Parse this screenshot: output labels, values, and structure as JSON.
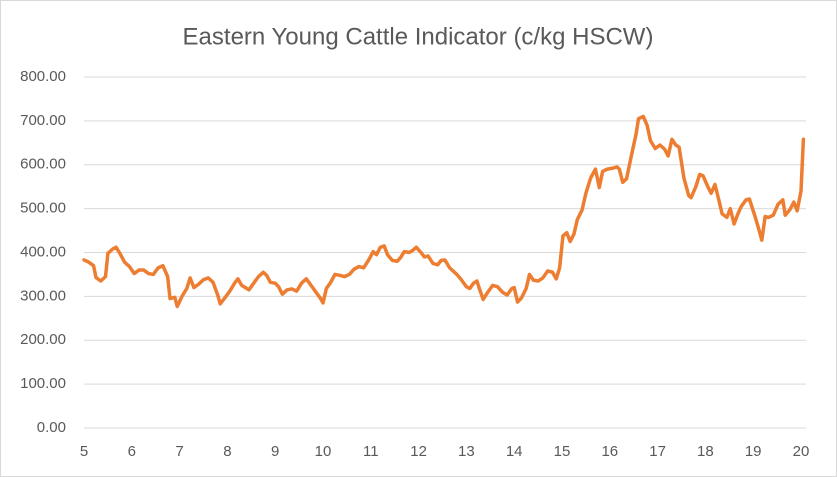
{
  "chart_data": {
    "type": "line",
    "title": "Eastern Young Cattle Indicator (c/kg HSCW)",
    "x": [
      5.0,
      5.1,
      5.2,
      5.25,
      5.35,
      5.45,
      5.5,
      5.6,
      5.67,
      5.75,
      5.85,
      5.95,
      6.05,
      6.15,
      6.25,
      6.35,
      6.45,
      6.55,
      6.65,
      6.75,
      6.8,
      6.9,
      6.95,
      7.05,
      7.15,
      7.22,
      7.3,
      7.4,
      7.5,
      7.6,
      7.7,
      7.8,
      7.85,
      7.95,
      8.05,
      8.15,
      8.22,
      8.3,
      8.45,
      8.55,
      8.65,
      8.75,
      8.82,
      8.9,
      9.0,
      9.07,
      9.15,
      9.25,
      9.35,
      9.45,
      9.55,
      9.65,
      9.75,
      9.85,
      9.95,
      10.0,
      10.07,
      10.15,
      10.25,
      10.35,
      10.45,
      10.55,
      10.65,
      10.75,
      10.85,
      10.95,
      11.05,
      11.12,
      11.2,
      11.28,
      11.35,
      11.45,
      11.55,
      11.62,
      11.7,
      11.8,
      11.88,
      11.95,
      12.05,
      12.12,
      12.2,
      12.3,
      12.4,
      12.47,
      12.55,
      12.65,
      12.8,
      12.9,
      13.0,
      13.07,
      13.15,
      13.22,
      13.28,
      13.35,
      13.45,
      13.55,
      13.65,
      13.75,
      13.85,
      13.95,
      14.0,
      14.07,
      14.15,
      14.25,
      14.32,
      14.4,
      14.5,
      14.6,
      14.7,
      14.8,
      14.88,
      14.95,
      15.02,
      15.1,
      15.17,
      15.25,
      15.32,
      15.42,
      15.5,
      15.6,
      15.7,
      15.78,
      15.85,
      15.95,
      16.05,
      16.15,
      16.2,
      16.27,
      16.35,
      16.45,
      16.55,
      16.6,
      16.7,
      16.78,
      16.85,
      16.95,
      17.05,
      17.15,
      17.22,
      17.3,
      17.38,
      17.45,
      17.55,
      17.65,
      17.7,
      17.8,
      17.88,
      17.95,
      18.05,
      18.12,
      18.2,
      18.28,
      18.35,
      18.45,
      18.52,
      18.6,
      18.68,
      18.75,
      18.85,
      18.92,
      19.0,
      19.05,
      19.12,
      19.18,
      19.25,
      19.32,
      19.42,
      19.52,
      19.62,
      19.67,
      19.77,
      19.85,
      19.92,
      20.0,
      20.05
    ],
    "values": [
      383,
      378,
      370,
      343,
      335,
      345,
      398,
      408,
      412,
      398,
      378,
      368,
      352,
      360,
      360,
      352,
      350,
      365,
      370,
      345,
      295,
      298,
      277,
      300,
      318,
      342,
      320,
      328,
      338,
      342,
      332,
      302,
      283,
      297,
      312,
      330,
      340,
      325,
      315,
      330,
      345,
      355,
      348,
      332,
      330,
      322,
      305,
      315,
      317,
      312,
      330,
      340,
      325,
      310,
      295,
      285,
      318,
      330,
      350,
      348,
      345,
      350,
      362,
      368,
      365,
      382,
      402,
      395,
      412,
      415,
      395,
      382,
      380,
      388,
      402,
      400,
      405,
      412,
      400,
      390,
      392,
      375,
      372,
      382,
      383,
      365,
      350,
      337,
      322,
      318,
      330,
      335,
      315,
      293,
      310,
      325,
      322,
      310,
      303,
      318,
      320,
      287,
      296,
      318,
      350,
      337,
      335,
      342,
      358,
      355,
      340,
      365,
      438,
      445,
      425,
      442,
      475,
      497,
      535,
      570,
      590,
      548,
      585,
      590,
      592,
      595,
      590,
      560,
      568,
      620,
      670,
      705,
      710,
      690,
      655,
      637,
      645,
      635,
      620,
      658,
      645,
      640,
      570,
      530,
      525,
      550,
      578,
      575,
      550,
      535,
      555,
      520,
      488,
      480,
      500,
      465,
      488,
      505,
      520,
      522,
      495,
      478,
      452,
      428,
      482,
      480,
      485,
      510,
      520,
      485,
      498,
      515,
      495,
      540,
      658
    ],
    "color": "#ed7d31",
    "xlim": [
      5,
      20
    ],
    "xticks": [
      5,
      6,
      7,
      8,
      9,
      10,
      11,
      12,
      13,
      14,
      15,
      16,
      17,
      18,
      19,
      20
    ],
    "ylim": [
      0,
      800
    ],
    "yticks": [
      {
        "value": 0,
        "label": "0.00"
      },
      {
        "value": 100,
        "label": "100.00"
      },
      {
        "value": 200,
        "label": "200.00"
      },
      {
        "value": 300,
        "label": "300.00"
      },
      {
        "value": 400,
        "label": "400.00"
      },
      {
        "value": 500,
        "label": "500.00"
      },
      {
        "value": 600,
        "label": "600.00"
      },
      {
        "value": 700,
        "label": "700.00"
      },
      {
        "value": 800,
        "label": "800.00"
      }
    ],
    "grid": true
  }
}
